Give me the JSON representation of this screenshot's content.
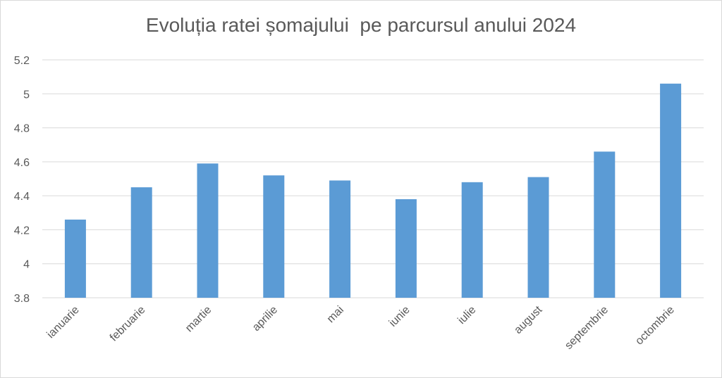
{
  "chart_data": {
    "type": "bar",
    "title": "Evoluția ratei șomajului  pe parcursul anului 2024",
    "xlabel": "",
    "ylabel": "",
    "categories": [
      "ianuarie",
      "februarie",
      "martie",
      "aprilie",
      "mai",
      "iunie",
      "iulie",
      "august",
      "septembrie",
      "octombrie"
    ],
    "values": [
      4.26,
      4.45,
      4.59,
      4.52,
      4.49,
      4.38,
      4.48,
      4.51,
      4.66,
      5.06
    ],
    "ylim": [
      3.8,
      5.2
    ],
    "yticks": [
      "3.8",
      "4",
      "4.2",
      "4.4",
      "4.6",
      "4.8",
      "5",
      "5.2"
    ],
    "grid": true,
    "legend": "none",
    "bar_color": "#5b9bd5",
    "grid_color": "#d9d9d9"
  }
}
